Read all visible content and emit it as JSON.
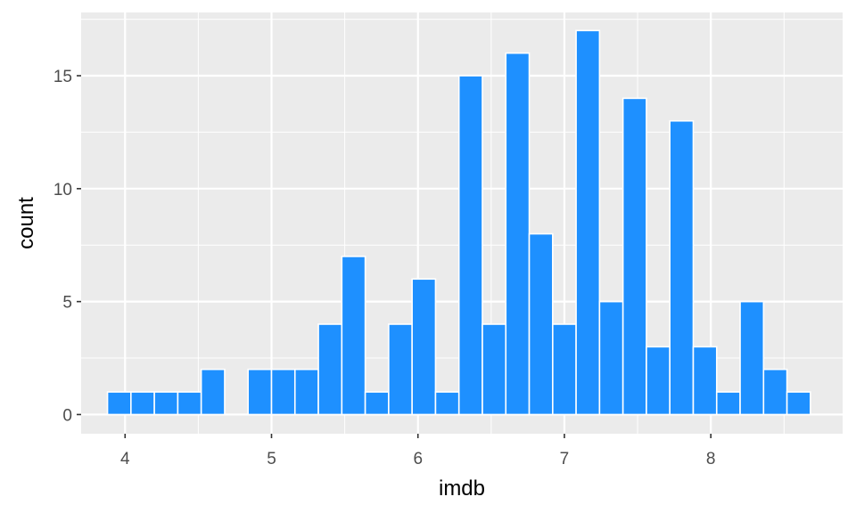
{
  "chart_data": {
    "type": "bar",
    "subtype": "histogram",
    "xlabel": "imdb",
    "ylabel": "count",
    "xlim": [
      3.7,
      8.9
    ],
    "ylim": [
      -0.85,
      17.8
    ],
    "x_ticks": [
      4,
      5,
      6,
      7,
      8
    ],
    "x_tick_labels": [
      "4",
      "5",
      "6",
      "7",
      "8"
    ],
    "y_ticks": [
      0,
      5,
      10,
      15
    ],
    "y_tick_labels": [
      "0",
      "5",
      "10",
      "15"
    ],
    "bin_width": 0.16,
    "bin_start": 3.88,
    "counts": [
      1,
      1,
      1,
      1,
      2,
      0,
      2,
      2,
      2,
      4,
      7,
      1,
      4,
      6,
      1,
      15,
      4,
      16,
      8,
      4,
      17,
      5,
      14,
      3,
      13,
      3,
      1,
      5,
      2,
      1
    ],
    "bar_color": "#1E90FF",
    "bar_outline": "#FFFFFF",
    "panel_background": "#EBEBEB",
    "grid": true
  }
}
